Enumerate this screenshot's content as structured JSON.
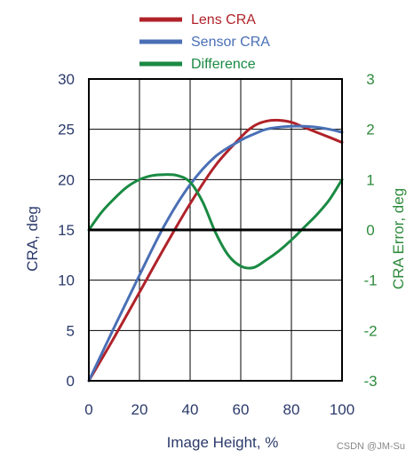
{
  "watermark": "CSDN @JM-Su",
  "chart_data": {
    "type": "line",
    "title": "",
    "xlabel": "Image Height, %",
    "ylabel_left": "CRA, deg",
    "ylabel_right": "CRA Error, deg",
    "xlim": [
      0,
      100
    ],
    "ylim_left": [
      0,
      30
    ],
    "ylim_right": [
      -3,
      3
    ],
    "x_ticks": [
      "0",
      "20",
      "40",
      "60",
      "80",
      "100"
    ],
    "y_ticks_left": [
      "0",
      "5",
      "10",
      "15",
      "20",
      "25",
      "30"
    ],
    "y_ticks_right": [
      "-3",
      "-2",
      "-1",
      "0",
      "1",
      "2",
      "3"
    ],
    "grid": true,
    "legend_position": "top",
    "colors": {
      "axis_left": "#2b3a6b",
      "axis_right": "#2e8b3c",
      "lens": "#b0222a",
      "sensor": "#4a6fb5",
      "difference": "#1a8a43"
    },
    "series": [
      {
        "name": "Lens CRA",
        "axis": "left",
        "color": "#b0222a",
        "x": [
          0,
          10,
          20,
          30,
          40,
          50,
          60,
          65,
          70,
          75,
          80,
          85,
          90,
          95,
          100
        ],
        "y": [
          0,
          4.3,
          8.8,
          13.3,
          17.6,
          21.4,
          24.2,
          25.3,
          25.8,
          25.9,
          25.7,
          25.2,
          24.7,
          24.2,
          23.7
        ]
      },
      {
        "name": "Sensor CRA",
        "axis": "left",
        "color": "#4a6fb5",
        "x": [
          0,
          10,
          20,
          30,
          40,
          50,
          60,
          65,
          70,
          75,
          80,
          85,
          90,
          95,
          100
        ],
        "y": [
          0,
          5.3,
          10.5,
          15.5,
          19.5,
          22.3,
          23.9,
          24.5,
          25.0,
          25.2,
          25.3,
          25.3,
          25.2,
          25.0,
          24.7
        ]
      },
      {
        "name": "Difference",
        "axis": "right",
        "color": "#1a8a43",
        "x": [
          0,
          5,
          10,
          15,
          20,
          25,
          30,
          35,
          40,
          45,
          50,
          55,
          60,
          65,
          70,
          75,
          80,
          85,
          90,
          95,
          100
        ],
        "y": [
          0,
          0.35,
          0.62,
          0.85,
          1.0,
          1.08,
          1.1,
          1.08,
          0.95,
          0.55,
          -0.05,
          -0.5,
          -0.72,
          -0.75,
          -0.6,
          -0.42,
          -0.2,
          0.05,
          0.3,
          0.6,
          1.0
        ]
      }
    ]
  }
}
